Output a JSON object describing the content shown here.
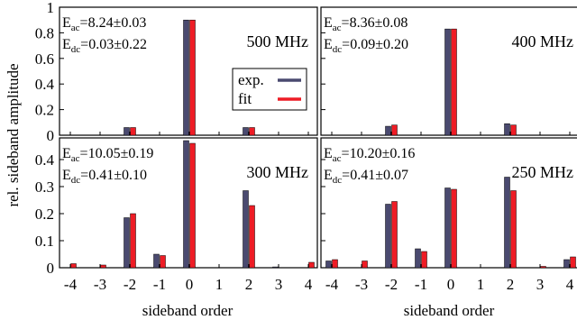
{
  "colors": {
    "exp": "#4a4a70",
    "fit": "#ee1c25",
    "axis": "#000000"
  },
  "chart_data": {
    "type": "bar",
    "xlabel": "sideband order",
    "ylabel": "rel. sideband amplitude",
    "categories": [
      "-4",
      "-3",
      "-2",
      "-1",
      "0",
      "1",
      "2",
      "3",
      "4"
    ],
    "legend": {
      "position": "top-left panel, center-right",
      "entries": [
        "exp.",
        "fit"
      ]
    },
    "panels": [
      {
        "id": "p500",
        "freq_label": "500 MHz",
        "eac": "=8.24±0.03",
        "edc": "=0.03±0.22",
        "show_legend": true,
        "ylim": [
          0,
          1
        ],
        "yticks": [
          0,
          0.2,
          0.4,
          0.6,
          0.8,
          1
        ],
        "ytick_labels": [
          "0",
          "0.2",
          "0.4",
          "0.6",
          "0.8",
          "1"
        ],
        "show_yticks": true,
        "show_xticks": false,
        "series": [
          {
            "name": "exp.",
            "values": [
              0,
              0,
              0.06,
              0.0,
              0.9,
              0,
              0.06,
              0,
              0
            ]
          },
          {
            "name": "fit",
            "values": [
              0,
              0,
              0.06,
              0.0,
              0.9,
              0,
              0.06,
              0,
              0
            ]
          }
        ]
      },
      {
        "id": "p400",
        "freq_label": "400 MHz",
        "eac": "=8.36±0.08",
        "edc": "=0.09±0.20",
        "show_legend": false,
        "ylim": [
          0,
          1
        ],
        "yticks": [
          0,
          0.2,
          0.4,
          0.6,
          0.8,
          1
        ],
        "ytick_labels": [],
        "show_yticks": false,
        "show_xticks": false,
        "series": [
          {
            "name": "exp.",
            "values": [
              0,
              0,
              0.07,
              0.0,
              0.83,
              0,
              0.09,
              0,
              0
            ]
          },
          {
            "name": "fit",
            "values": [
              0,
              0,
              0.08,
              0.0,
              0.83,
              0,
              0.08,
              0,
              0
            ]
          }
        ]
      },
      {
        "id": "p300",
        "freq_label": "300 MHz",
        "eac": "=10.05±0.19",
        "edc": "=0.41±0.10",
        "show_legend": false,
        "ylim": [
          0,
          0.48
        ],
        "yticks": [
          0,
          0.1,
          0.2,
          0.3,
          0.4
        ],
        "ytick_labels": [
          "0",
          "0.1",
          "0.2",
          "0.3",
          "0.4"
        ],
        "show_yticks": true,
        "show_xticks": true,
        "series": [
          {
            "name": "exp.",
            "values": [
              0.0,
              0.0,
              0.185,
              0.05,
              0.47,
              0.0,
              0.285,
              0.003,
              0.0
            ]
          },
          {
            "name": "fit",
            "values": [
              0.015,
              0.01,
              0.2,
              0.045,
              0.46,
              0.0,
              0.23,
              0.0,
              0.02
            ]
          }
        ]
      },
      {
        "id": "p250",
        "freq_label": "250 MHz",
        "eac": "=10.20±0.16",
        "edc": "=0.41±0.07",
        "show_legend": false,
        "ylim": [
          0,
          0.48
        ],
        "yticks": [
          0,
          0.1,
          0.2,
          0.3,
          0.4
        ],
        "ytick_labels": [],
        "show_yticks": false,
        "show_xticks": true,
        "series": [
          {
            "name": "exp.",
            "values": [
              0.025,
              0.0,
              0.235,
              0.07,
              0.295,
              0.0,
              0.335,
              0.0,
              0.03
            ]
          },
          {
            "name": "fit",
            "values": [
              0.03,
              0.025,
              0.245,
              0.06,
              0.29,
              0.0,
              0.285,
              0.005,
              0.04
            ]
          }
        ]
      }
    ]
  }
}
